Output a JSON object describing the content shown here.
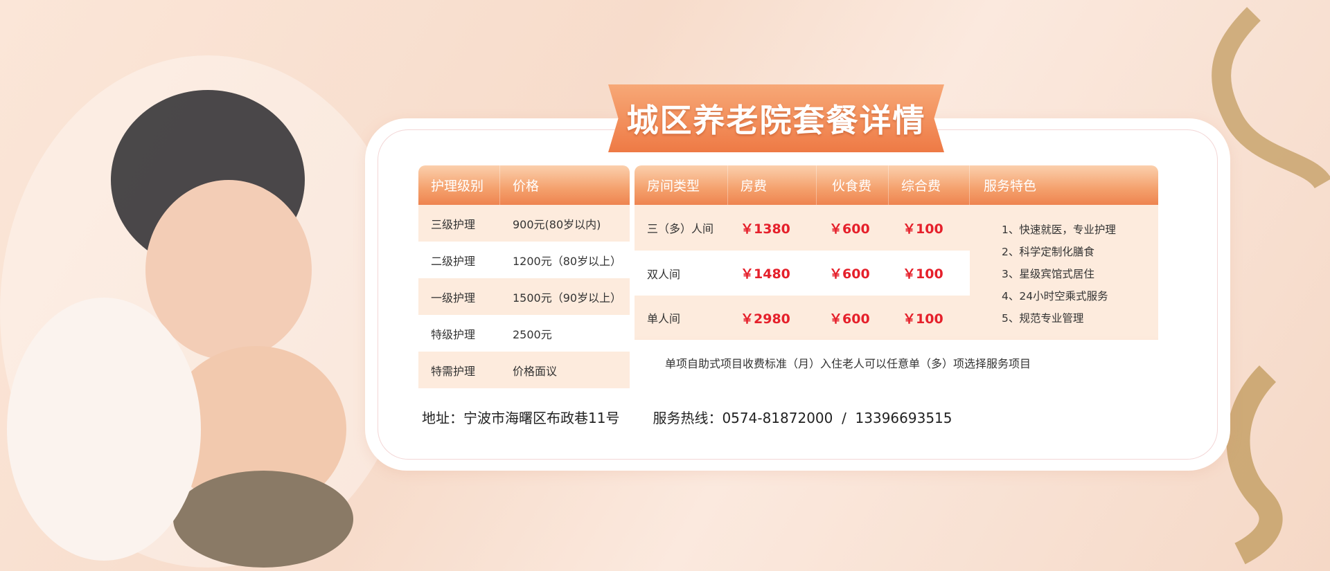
{
  "title": "城区养老院套餐详情",
  "care_table": {
    "headers": [
      "护理级别",
      "价格"
    ],
    "rows": [
      {
        "level": "三级护理",
        "price": "900元(80岁以内)"
      },
      {
        "level": "二级护理",
        "price": "1200元（80岁以上）"
      },
      {
        "level": "一级护理",
        "price": "1500元（90岁以上）"
      },
      {
        "level": "特级护理",
        "price": "2500元"
      },
      {
        "level": "特需护理",
        "price": "价格面议"
      }
    ]
  },
  "room_table": {
    "headers": [
      "房间类型",
      "房费",
      "伙食费",
      "综合费",
      "服务特色"
    ],
    "rows": [
      {
        "type": "三（多）人间",
        "room": "￥1380",
        "meal": "￥600",
        "general": "￥100"
      },
      {
        "type": "双人间",
        "room": "￥1480",
        "meal": "￥600",
        "general": "￥100"
      },
      {
        "type": "单人间",
        "room": "￥2980",
        "meal": "￥600",
        "general": "￥100"
      }
    ],
    "features": [
      "1、快速就医，专业护理",
      "2、科学定制化膳食",
      "3、星级宾馆式居住",
      "4、24小时空乘式服务",
      "5、规范专业管理"
    ],
    "footnote": "单项自助式项目收费标准（月）入住老人可以任意单（多）项选择服务项目"
  },
  "contact": {
    "address": "地址：宁波市海曙区布政巷11号",
    "hotline": "服务热线：0574-81872000  /  13396693515"
  },
  "colors": {
    "accent": "#ee7a45",
    "price": "#e5202b",
    "row_tint": "#fdebdd",
    "ribbon": "#c9a46e"
  }
}
